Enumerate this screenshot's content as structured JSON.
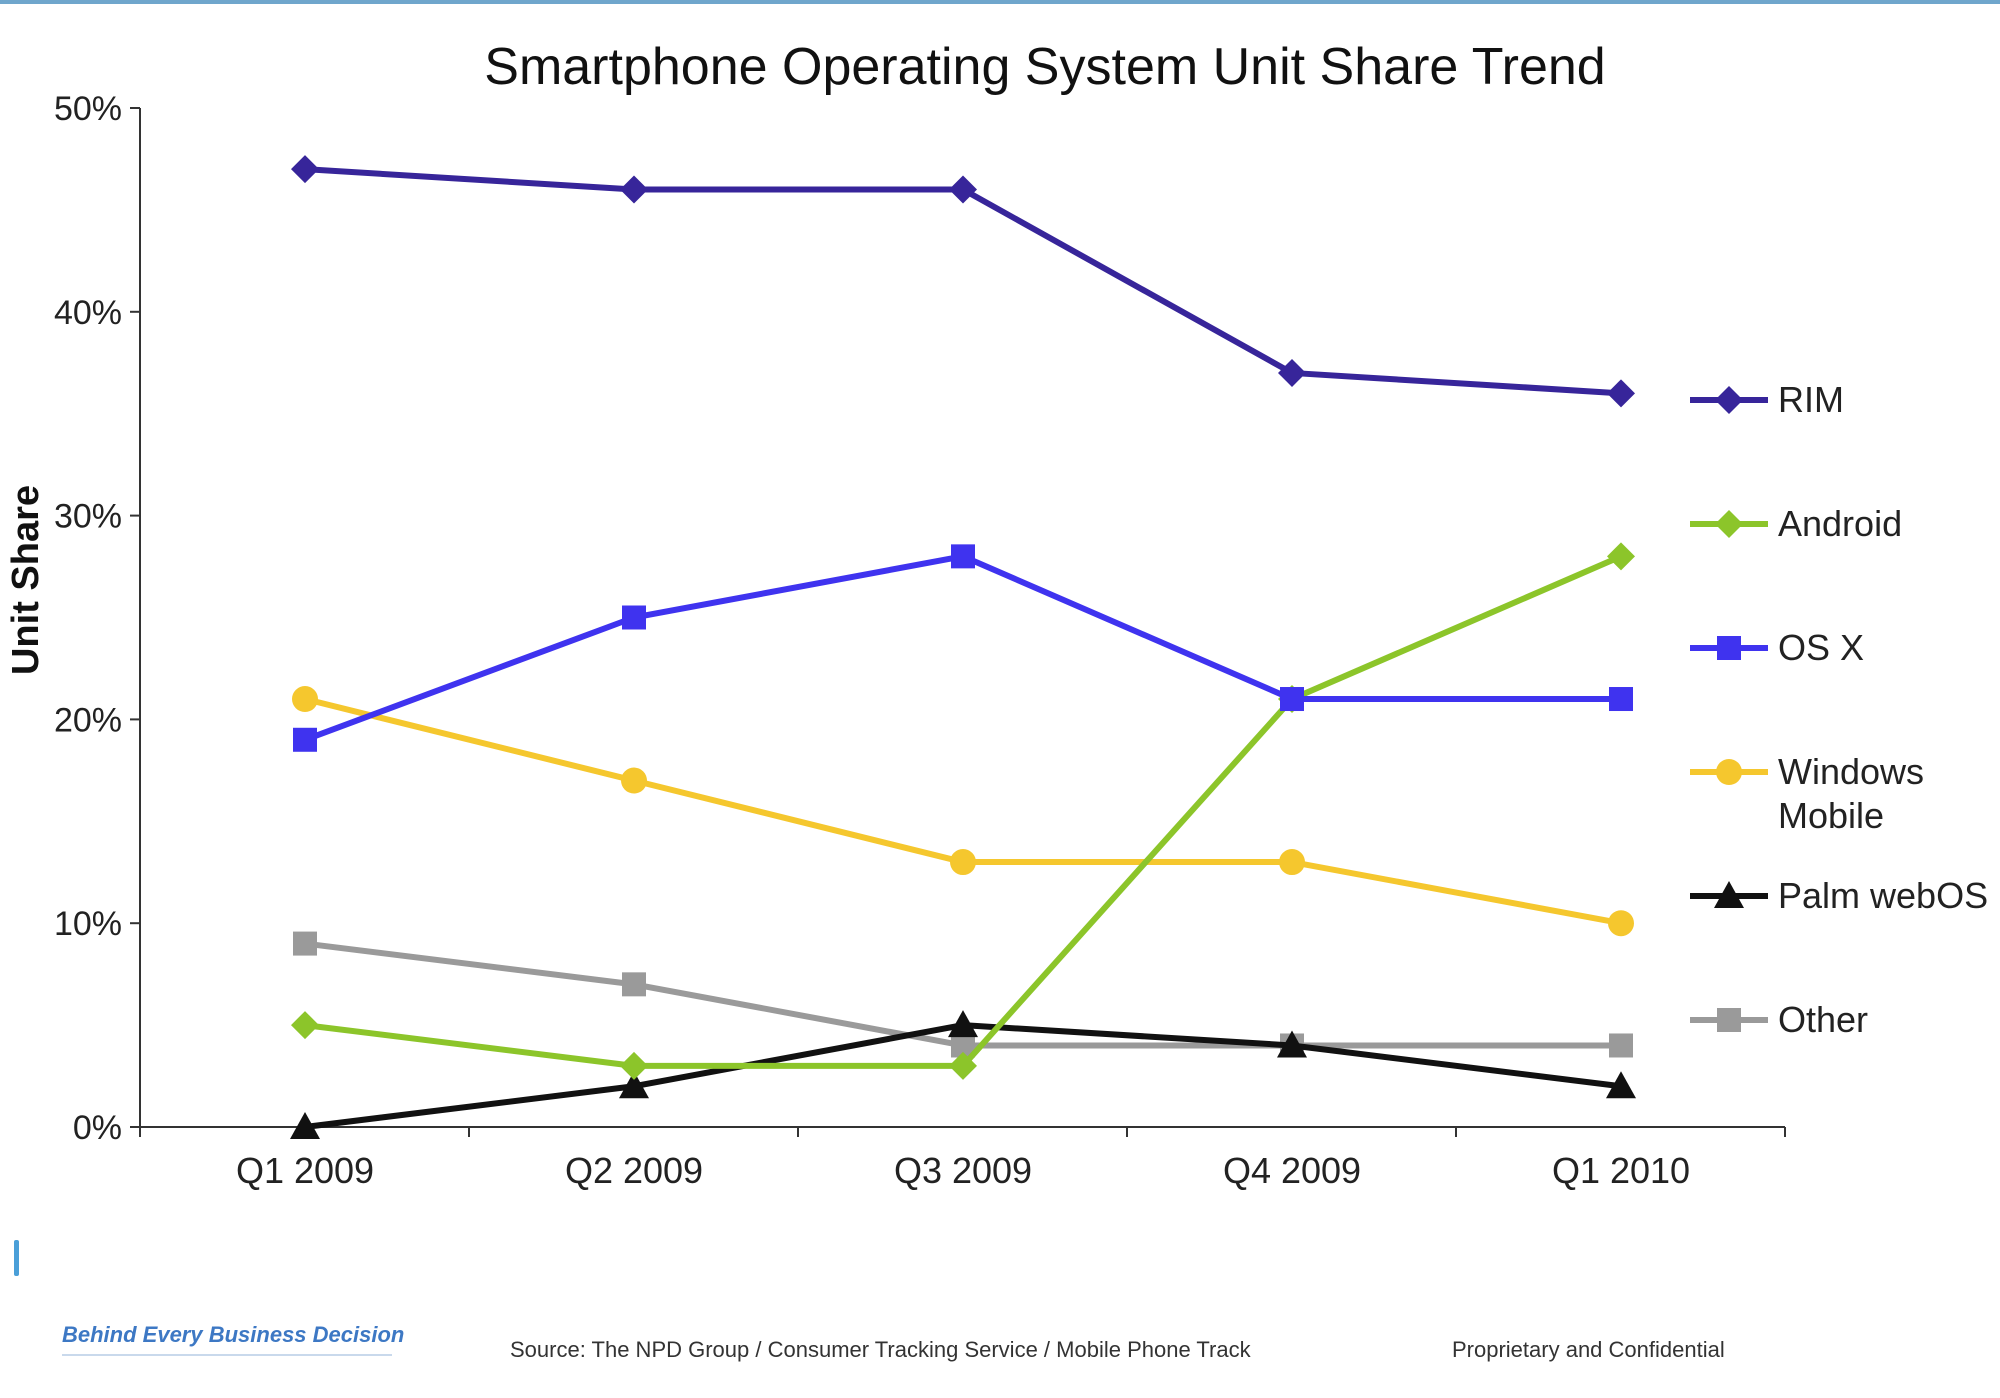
{
  "chart_data": {
    "type": "line",
    "title": "Smartphone Operating System Unit Share Trend",
    "ylabel": "Unit Share",
    "xlabel": "",
    "categories": [
      "Q1 2009",
      "Q2 2009",
      "Q3 2009",
      "Q4 2009",
      "Q1 2010"
    ],
    "ylim": [
      0,
      50
    ],
    "yticks": [
      0,
      10,
      20,
      30,
      40,
      50
    ],
    "ytick_labels": [
      "0%",
      "10%",
      "20%",
      "30%",
      "40%",
      "50%"
    ],
    "grid": false,
    "legend_position": "right",
    "series": [
      {
        "name": "RIM",
        "values": [
          47,
          46,
          46,
          37,
          36
        ],
        "color": "#37259a",
        "marker": "diamond"
      },
      {
        "name": "Android",
        "values": [
          5,
          3,
          3,
          21,
          28
        ],
        "color": "#8cc52a",
        "marker": "diamond"
      },
      {
        "name": "OS X",
        "values": [
          19,
          25,
          28,
          21,
          21
        ],
        "color": "#3f33ef",
        "marker": "square"
      },
      {
        "name": "Windows Mobile",
        "values": [
          21,
          17,
          13,
          13,
          10
        ],
        "color": "#f5c72e",
        "marker": "circle"
      },
      {
        "name": "Palm webOS",
        "values": [
          0,
          2,
          5,
          4,
          2
        ],
        "color": "#111111",
        "marker": "triangle"
      },
      {
        "name": "Other",
        "values": [
          9,
          7,
          4,
          4,
          4
        ],
        "color": "#9a9a9a",
        "marker": "square"
      }
    ]
  },
  "footer": {
    "tagline": "Behind Every Business Decision",
    "source": "Source: The NPD Group / Consumer Tracking Service / Mobile Phone Track",
    "confidential": "Proprietary and Confidential"
  }
}
